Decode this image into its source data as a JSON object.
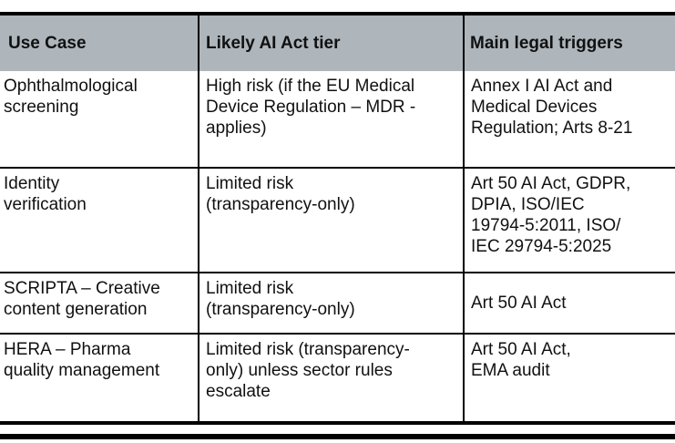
{
  "colors": {
    "header_bg": "#aeb6bc",
    "rule": "#000000",
    "text": "#111111"
  },
  "table": {
    "headers": [
      "Use Case",
      "Likely AI Act tier",
      "Main legal triggers"
    ],
    "rows": [
      {
        "cells": [
          "Ophthalmological\nscreening",
          "High risk (if the EU Medical\nDevice Regulation – MDR -\napplies)",
          "Annex I AI Act and\nMedical Devices\nRegulation; Arts 8-21"
        ]
      },
      {
        "cells": [
          "Identity\nverification",
          "Limited risk\n(transparency-only)",
          "Art 50 AI Act, GDPR,\nDPIA, ISO/IEC\n19794-5:2011, ISO/\nIEC 29794-5:2025"
        ]
      },
      {
        "cells": [
          "SCRIPTA – Creative\ncontent generation",
          "Limited risk\n(transparency-only)",
          "Art 50 AI Act"
        ]
      },
      {
        "cells": [
          "HERA – Pharma\nquality management",
          "Limited risk (transparency-\nonly) unless sector rules\nescalate",
          "Art 50 AI Act,\nEMA audit"
        ]
      }
    ]
  }
}
